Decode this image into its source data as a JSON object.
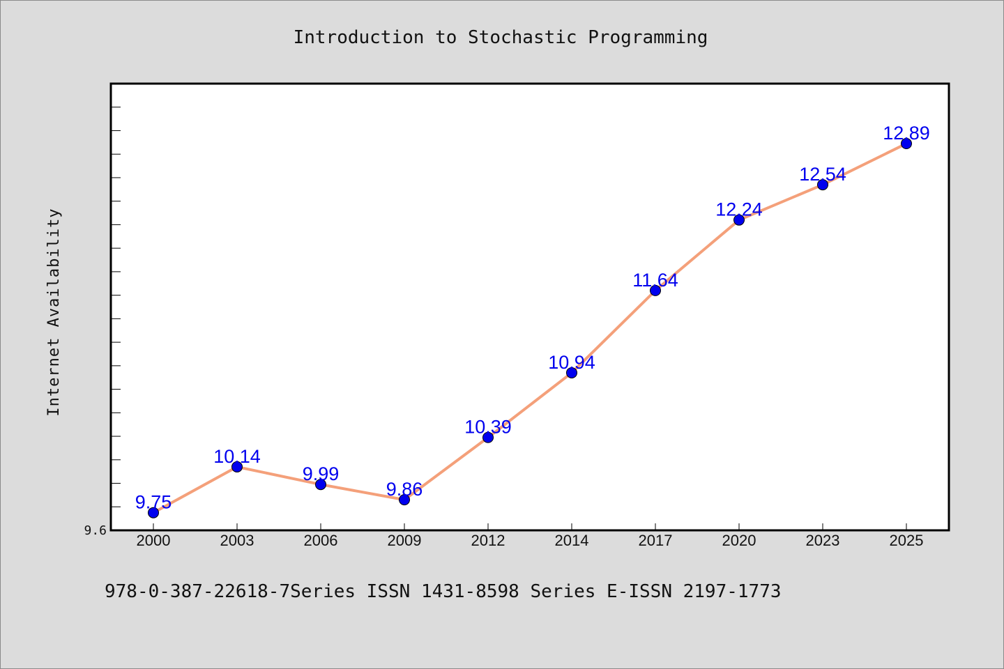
{
  "chart_data": {
    "type": "line",
    "title": "Introduction to Stochastic Programming",
    "xlabel": "",
    "ylabel": "Internet Availability",
    "categories": [
      "2000",
      "2003",
      "2006",
      "2009",
      "2012",
      "2014",
      "2017",
      "2020",
      "2023",
      "2025"
    ],
    "series": [
      {
        "values": [
          9.75,
          10.14,
          9.99,
          9.86,
          10.39,
          10.94,
          11.64,
          12.24,
          12.54,
          12.89
        ],
        "labels": [
          "9.75",
          "10.14",
          "9.99",
          "9.86",
          "10.39",
          "10.94",
          "11.64",
          "12.24",
          "12.54",
          "12.89"
        ],
        "line_color": "#f4a07a",
        "marker_color": "#0000ee"
      }
    ],
    "ylim": [
      9.6,
      13.4
    ],
    "y_tick_labels": [
      "9.6"
    ],
    "grid": false,
    "legend": "none"
  },
  "footer": {
    "text": "978-0-387-22618-7Series ISSN 1431-8598 Series E-ISSN 2197-1773"
  }
}
